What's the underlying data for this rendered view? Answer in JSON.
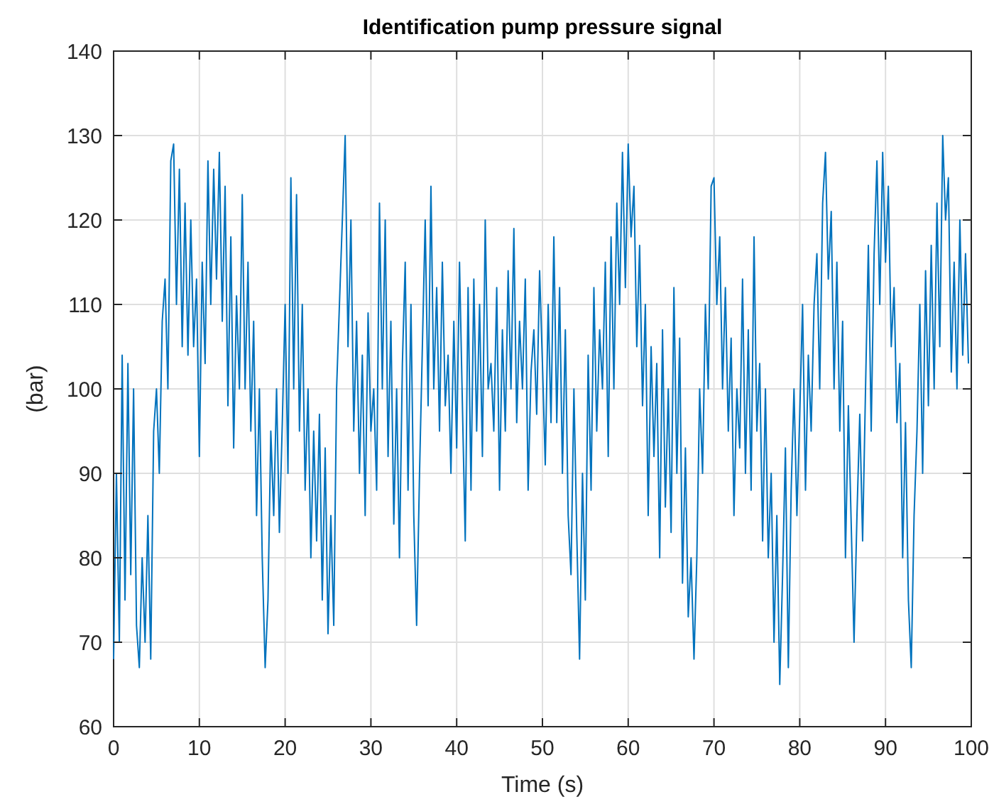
{
  "chart_data": {
    "type": "line",
    "title": "Identification pump pressure signal",
    "xlabel": "Time (s)",
    "ylabel": "(bar)",
    "x": [
      0,
      0.33,
      0.67,
      1,
      1.33,
      1.67,
      2,
      2.33,
      2.67,
      3,
      3.33,
      3.67,
      4,
      4.33,
      4.67,
      5,
      5.33,
      5.67,
      6,
      6.33,
      6.67,
      7,
      7.33,
      7.67,
      8,
      8.33,
      8.67,
      9,
      9.33,
      9.67,
      10,
      10.33,
      10.67,
      11,
      11.33,
      11.67,
      12,
      12.33,
      12.67,
      13,
      13.33,
      13.67,
      14,
      14.33,
      14.67,
      15,
      15.33,
      15.67,
      16,
      16.33,
      16.67,
      17,
      17.33,
      17.67,
      18,
      18.33,
      18.67,
      19,
      19.33,
      19.67,
      20,
      20.33,
      20.67,
      21,
      21.33,
      21.67,
      22,
      22.33,
      22.67,
      23,
      23.33,
      23.67,
      24,
      24.33,
      24.67,
      25,
      25.33,
      25.67,
      26,
      26.33,
      26.67,
      27,
      27.33,
      27.67,
      28,
      28.33,
      28.67,
      29,
      29.33,
      29.67,
      30,
      30.33,
      30.67,
      31,
      31.33,
      31.67,
      32,
      32.33,
      32.67,
      33,
      33.33,
      33.67,
      34,
      34.33,
      34.67,
      35,
      35.33,
      35.67,
      36,
      36.33,
      36.67,
      37,
      37.33,
      37.67,
      38,
      38.33,
      38.67,
      39,
      39.33,
      39.67,
      40,
      40.33,
      40.67,
      41,
      41.33,
      41.67,
      42,
      42.33,
      42.67,
      43,
      43.33,
      43.67,
      44,
      44.33,
      44.67,
      45,
      45.33,
      45.67,
      46,
      46.33,
      46.67,
      47,
      47.33,
      47.67,
      48,
      48.33,
      48.67,
      49,
      49.33,
      49.67,
      50,
      50.33,
      50.67,
      51,
      51.33,
      51.67,
      52,
      52.33,
      52.67,
      53,
      53.33,
      53.67,
      54,
      54.33,
      54.67,
      55,
      55.33,
      55.67,
      56,
      56.33,
      56.67,
      57,
      57.33,
      57.67,
      58,
      58.33,
      58.67,
      59,
      59.33,
      59.67,
      60,
      60.33,
      60.67,
      61,
      61.33,
      61.67,
      62,
      62.33,
      62.67,
      63,
      63.33,
      63.67,
      64,
      64.33,
      64.67,
      65,
      65.33,
      65.67,
      66,
      66.33,
      66.67,
      67,
      67.33,
      67.67,
      68,
      68.33,
      68.67,
      69,
      69.33,
      69.67,
      70,
      70.33,
      70.67,
      71,
      71.33,
      71.67,
      72,
      72.33,
      72.67,
      73,
      73.33,
      73.67,
      74,
      74.33,
      74.67,
      75,
      75.33,
      75.67,
      76,
      76.33,
      76.67,
      77,
      77.33,
      77.67,
      78,
      78.33,
      78.67,
      79,
      79.33,
      79.67,
      80,
      80.33,
      80.67,
      81,
      81.33,
      81.67,
      82,
      82.33,
      82.67,
      83,
      83.33,
      83.67,
      84,
      84.33,
      84.67,
      85,
      85.33,
      85.67,
      86,
      86.33,
      86.67,
      87,
      87.33,
      87.67,
      88,
      88.33,
      88.67,
      89,
      89.33,
      89.67,
      90,
      90.33,
      90.67,
      91,
      91.33,
      91.67,
      92,
      92.33,
      92.67,
      93,
      93.33,
      93.67,
      94,
      94.33,
      94.67,
      95,
      95.33,
      95.67,
      96,
      96.33,
      96.67,
      97,
      97.33,
      97.67,
      98,
      98.33,
      98.67,
      99,
      99.33,
      99.67
    ],
    "series": [
      {
        "color": "#0072bd",
        "values": [
          68,
          90,
          70,
          104,
          75,
          103,
          78,
          100,
          72,
          67,
          80,
          70,
          85,
          68,
          95,
          100,
          90,
          108,
          113,
          100,
          127,
          129,
          110,
          126,
          105,
          122,
          104,
          120,
          105,
          113,
          92,
          115,
          103,
          127,
          110,
          126,
          113,
          128,
          108,
          124,
          98,
          118,
          93,
          111,
          100,
          123,
          100,
          115,
          95,
          108,
          85,
          100,
          80,
          67,
          75,
          95,
          85,
          100,
          83,
          96,
          110,
          90,
          125,
          100,
          123,
          95,
          110,
          88,
          100,
          80,
          95,
          82,
          97,
          75,
          93,
          71,
          85,
          72,
          100,
          110,
          120,
          130,
          105,
          120,
          95,
          108,
          90,
          104,
          85,
          109,
          95,
          100,
          88,
          122,
          100,
          120,
          92,
          108,
          84,
          100,
          80,
          103,
          115,
          88,
          110,
          85,
          72,
          90,
          105,
          120,
          98,
          124,
          100,
          112,
          95,
          115,
          98,
          104,
          90,
          108,
          93,
          115,
          98,
          82,
          112,
          88,
          113,
          95,
          110,
          92,
          120,
          100,
          103,
          95,
          112,
          88,
          107,
          95,
          114,
          100,
          119,
          96,
          108,
          100,
          113,
          88,
          102,
          107,
          97,
          114,
          103,
          91,
          110,
          96,
          118,
          96,
          112,
          90,
          107,
          85,
          78,
          100,
          83,
          68,
          90,
          75,
          104,
          88,
          112,
          95,
          107,
          100,
          115,
          92,
          118,
          100,
          122,
          110,
          128,
          112,
          129,
          118,
          124,
          105,
          117,
          98,
          110,
          85,
          105,
          92,
          103,
          80,
          107,
          86,
          100,
          83,
          112,
          90,
          106,
          77,
          93,
          73,
          80,
          68,
          80,
          100,
          90,
          110,
          100,
          124,
          125,
          110,
          118,
          100,
          112,
          95,
          106,
          85,
          100,
          93,
          113,
          90,
          107,
          88,
          118,
          95,
          103,
          82,
          100,
          80,
          90,
          70,
          85,
          65,
          78,
          93,
          67,
          88,
          100,
          85,
          97,
          110,
          88,
          104,
          95,
          110,
          116,
          100,
          122,
          128,
          113,
          121,
          100,
          115,
          95,
          108,
          80,
          98,
          84,
          70,
          85,
          97,
          82,
          100,
          117,
          95,
          116,
          127,
          110,
          128,
          115,
          124,
          105,
          112,
          96,
          103,
          80,
          96,
          75,
          67,
          85,
          95,
          110,
          90,
          114,
          98,
          117,
          100,
          122,
          105,
          130,
          120,
          125,
          102,
          115,
          100,
          120,
          104,
          116,
          103
        ]
      }
    ],
    "xlim": [
      0,
      100
    ],
    "xticks": [
      0,
      10,
      20,
      30,
      40,
      50,
      60,
      70,
      80,
      90,
      100
    ],
    "ylim": [
      60,
      140
    ],
    "yticks": [
      60,
      70,
      80,
      90,
      100,
      110,
      120,
      130,
      140
    ],
    "grid": true,
    "line_style": "solid",
    "marker": "none"
  }
}
